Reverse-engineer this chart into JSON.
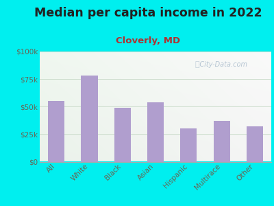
{
  "title": "Median per capita income in 2022",
  "subtitle": "Cloverly, MD",
  "categories": [
    "All",
    "White",
    "Black",
    "Asian",
    "Hispanic",
    "Multirace",
    "Other"
  ],
  "values": [
    55000,
    78000,
    49000,
    54000,
    30000,
    37000,
    32000
  ],
  "bar_color": "#b09ece",
  "background_outer": "#00efef",
  "background_inner": "#f0faf0",
  "title_color": "#222222",
  "subtitle_color": "#b03030",
  "tick_color": "#666655",
  "ytick_labels": [
    "$0",
    "$25k",
    "$50k",
    "$75k",
    "$100k"
  ],
  "ytick_values": [
    0,
    25000,
    50000,
    75000,
    100000
  ],
  "ylim": [
    0,
    100000
  ],
  "title_fontsize": 12.5,
  "subtitle_fontsize": 9.5,
  "tick_fontsize": 7.5,
  "watermark": "City-Data.com",
  "watermark_color": "#aabccc",
  "grid_color": "#ccddcc"
}
